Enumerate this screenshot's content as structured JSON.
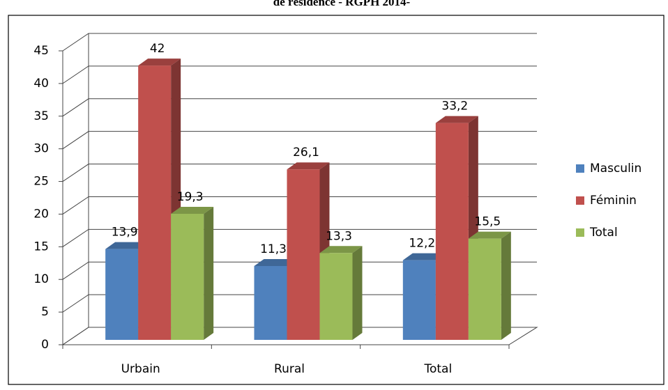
{
  "chart_data": {
    "type": "bar3d",
    "title": "de résidence  - RGPH 2014-",
    "categories": [
      "Urbain",
      "Rural",
      "Total"
    ],
    "series": [
      {
        "name": "Masculin",
        "color": "#4f81bd",
        "values": [
          13.9,
          11.3,
          12.2
        ],
        "value_labels": [
          "13,9",
          "11,3",
          "12,2"
        ]
      },
      {
        "name": "Féminin",
        "color": "#c0504d",
        "values": [
          42,
          26.1,
          33.2
        ],
        "value_labels": [
          "42",
          "26,1",
          "33,2"
        ]
      },
      {
        "name": "Total",
        "color": "#9bbb59",
        "values": [
          19.3,
          13.3,
          15.5
        ],
        "value_labels": [
          "19,3",
          "13,3",
          "15,5"
        ]
      }
    ],
    "ylim": [
      0,
      45
    ],
    "yticks": [
      0,
      5,
      10,
      15,
      20,
      25,
      30,
      35,
      40,
      45
    ],
    "grid": true,
    "legend": "right"
  }
}
